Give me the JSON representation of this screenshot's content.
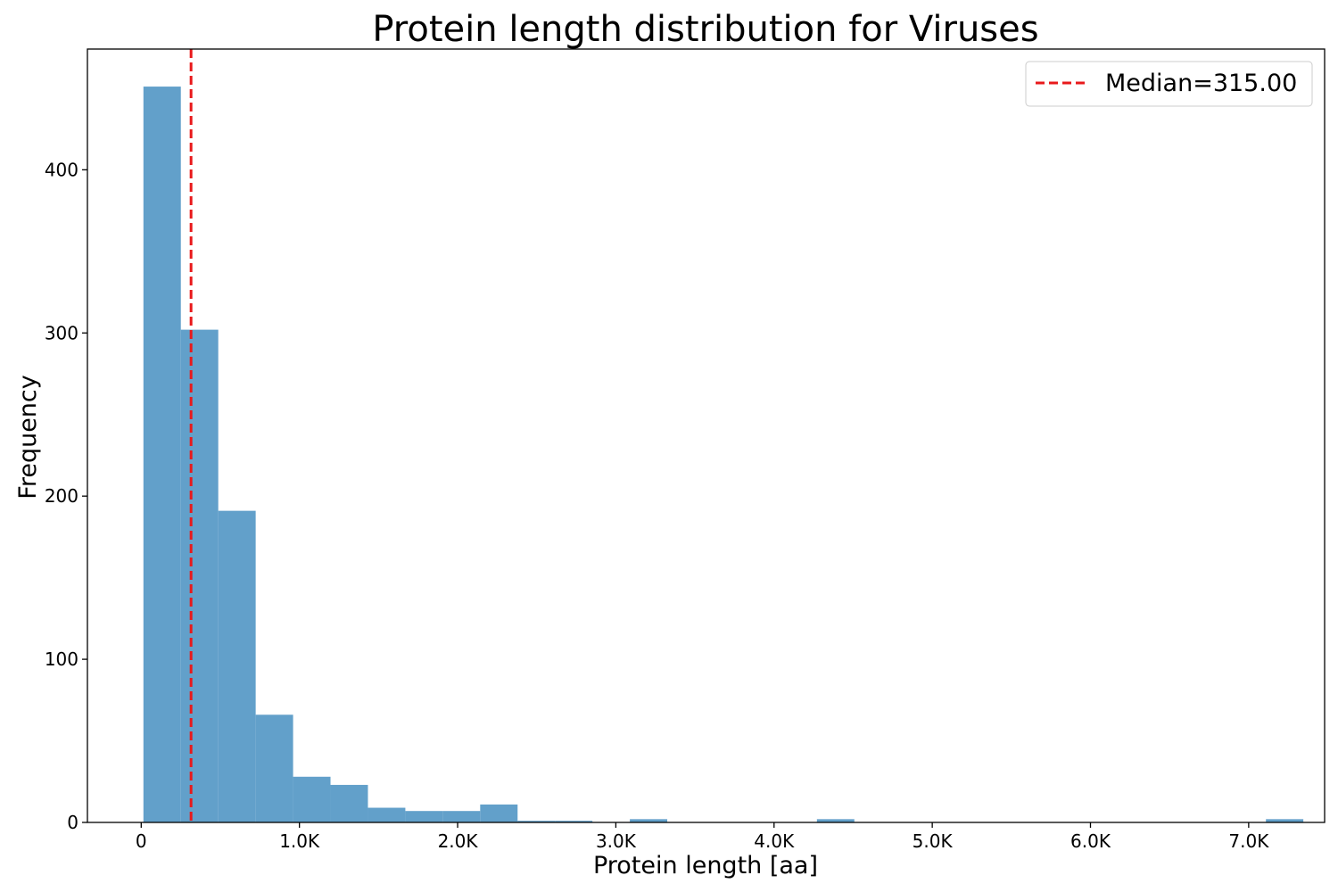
{
  "chart_data": {
    "type": "bar",
    "title": "Protein length distribution for Viruses",
    "xlabel": "Protein length [aa]",
    "ylabel": "Frequency",
    "xlim": [
      -340,
      7480
    ],
    "ylim": [
      0,
      474
    ],
    "x_ticks": [
      {
        "value": 0,
        "label": "0"
      },
      {
        "value": 1000,
        "label": "1.0K"
      },
      {
        "value": 2000,
        "label": "2.0K"
      },
      {
        "value": 3000,
        "label": "3.0K"
      },
      {
        "value": 4000,
        "label": "4.0K"
      },
      {
        "value": 5000,
        "label": "5.0K"
      },
      {
        "value": 6000,
        "label": "6.0K"
      },
      {
        "value": 7000,
        "label": "7.0K"
      }
    ],
    "y_ticks": [
      {
        "value": 0,
        "label": "0"
      },
      {
        "value": 100,
        "label": "100"
      },
      {
        "value": 200,
        "label": "200"
      },
      {
        "value": 300,
        "label": "300"
      },
      {
        "value": 400,
        "label": "400"
      }
    ],
    "bin_start": 14,
    "bin_width": 236.5,
    "counts": [
      451,
      302,
      191,
      66,
      28,
      23,
      9,
      7,
      7,
      11,
      1,
      1,
      0,
      2,
      0,
      0,
      0,
      0,
      2,
      0,
      0,
      0,
      0,
      0,
      0,
      0,
      0,
      0,
      0,
      0,
      2
    ],
    "bar_color": "#62a0ca",
    "median": {
      "value": 315,
      "label": "Median=315.00",
      "color": "#e8191b"
    },
    "legend_position": "top-right",
    "grid": false
  }
}
